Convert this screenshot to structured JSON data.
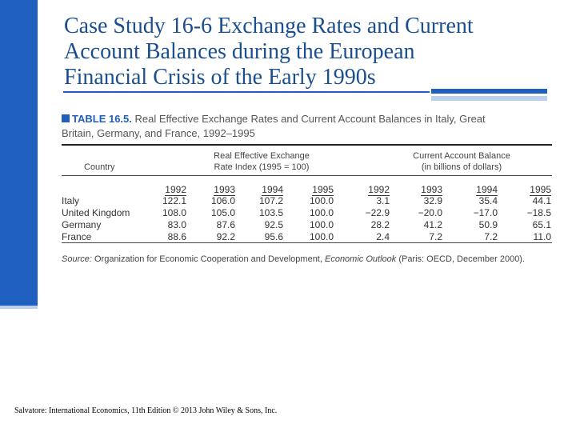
{
  "slide": {
    "title": "Case Study 16-6  Exchange Rates and Current\nAccount Balances during the European\nFinancial Crisis of the Early 1990s",
    "footer": "Salvatore: International Economics, 11th Edition © 2013 John Wiley & Sons, Inc."
  },
  "table": {
    "number": "TABLE 16.5.",
    "caption_line1": "Real Effective Exchange Rates and Current Account Balances in Italy, Great",
    "caption_line2": "Britain, Germany, and France, 1992–1995",
    "header_country": "Country",
    "header_rer_line1": "Real Effective Exchange",
    "header_rer_line2": "Rate Index (1995 = 100)",
    "header_cab_line1": "Current Account Balance",
    "header_cab_line2": "(in billions of dollars)",
    "years": [
      "1992",
      "1993",
      "1994",
      "1995",
      "1992",
      "1993",
      "1994",
      "1995"
    ],
    "rows": [
      {
        "country": "Italy",
        "values": [
          "122.1",
          "106.0",
          "107.2",
          "100.0",
          "3.1",
          "32.9",
          "35.4",
          "44.1"
        ]
      },
      {
        "country": "United Kingdom",
        "values": [
          "108.0",
          "105.0",
          "103.5",
          "100.0",
          "−22.9",
          "−20.0",
          "−17.0",
          "−18.5"
        ]
      },
      {
        "country": "Germany",
        "values": [
          "83.0",
          "87.6",
          "92.5",
          "100.0",
          "28.2",
          "41.2",
          "50.9",
          "65.1"
        ]
      },
      {
        "country": "France",
        "values": [
          "88.6",
          "92.2",
          "95.6",
          "100.0",
          "2.4",
          "7.2",
          "7.2",
          "11.0"
        ]
      }
    ],
    "source_label": "Source:",
    "source_text": "Organization for Economic Cooperation and Development,",
    "source_pub": "Economic Outlook",
    "source_tail": "(Paris: OECD, December 2000)."
  }
}
